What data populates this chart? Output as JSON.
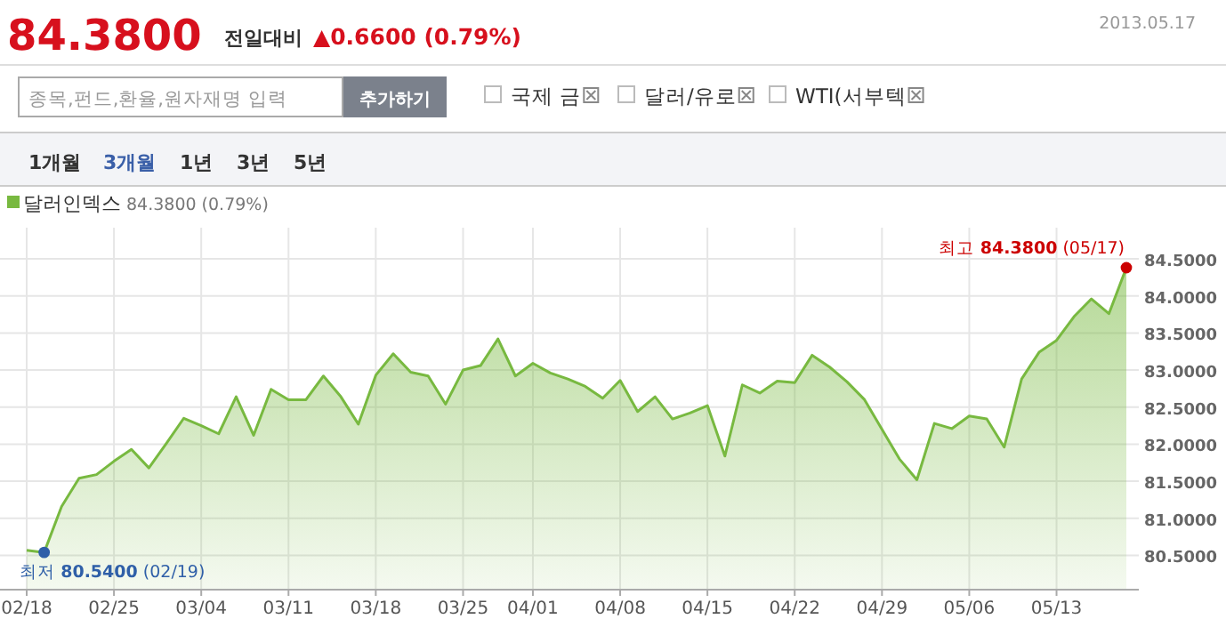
{
  "chart_data": {
    "type": "area",
    "title": "84.3800",
    "subtitle": "전일대비",
    "categories": [
      "02/18",
      null,
      null,
      null,
      null,
      "02/25",
      null,
      null,
      null,
      null,
      "03/04",
      null,
      null,
      null,
      null,
      "03/11",
      null,
      null,
      null,
      null,
      "03/18",
      null,
      null,
      null,
      null,
      "03/25",
      null,
      null,
      null,
      "04/01",
      null,
      null,
      null,
      null,
      "04/08",
      null,
      null,
      null,
      null,
      "04/15",
      null,
      null,
      null,
      null,
      "04/22",
      null,
      null,
      null,
      null,
      "04/29",
      null,
      null,
      null,
      null,
      "05/06",
      null,
      null,
      null,
      null,
      "05/13",
      null,
      null,
      null,
      null
    ],
    "series": [
      {
        "name": "달러인덱스",
        "color": "#78b940",
        "values": [
          80.57,
          80.54,
          81.16,
          81.54,
          81.59,
          81.77,
          81.93,
          81.68,
          82.01,
          82.35,
          82.25,
          82.14,
          82.64,
          82.12,
          82.74,
          82.6,
          82.6,
          82.92,
          82.64,
          82.27,
          82.93,
          83.22,
          82.97,
          82.92,
          82.54,
          83.0,
          83.06,
          83.42,
          82.92,
          83.09,
          82.96,
          82.88,
          82.78,
          82.62,
          82.86,
          82.44,
          82.64,
          82.34,
          82.42,
          82.52,
          81.84,
          82.8,
          82.69,
          82.85,
          82.83,
          83.2,
          83.04,
          82.84,
          82.6,
          82.2,
          81.8,
          81.52,
          82.28,
          82.21,
          82.38,
          82.34,
          81.96,
          82.88,
          83.24,
          83.4,
          83.72,
          83.96,
          83.76,
          84.38
        ]
      }
    ],
    "ylim": [
      80.05,
      84.92
    ],
    "yticks": [
      {
        "value": 80.5,
        "label": "80.5000"
      },
      {
        "value": 81,
        "label": "81.0000"
      },
      {
        "value": 81.5,
        "label": "81.5000"
      },
      {
        "value": 82,
        "label": "82.0000"
      },
      {
        "value": 82.5,
        "label": "82.5000"
      },
      {
        "value": 83,
        "label": "83.0000"
      },
      {
        "value": 83.5,
        "label": "83.5000"
      },
      {
        "value": 84,
        "label": "84.0000"
      },
      {
        "value": 84.5,
        "label": "84.5000"
      }
    ],
    "grid": true,
    "legend": "top left",
    "annotations": [
      "▲0.6600 (0.79%)",
      "2013.05.17",
      "종목,펀드,환율,원자재명 입력",
      "추가하기",
      "국제 금",
      "달러/유로",
      "WTI(서부텍",
      "1개월",
      "3개월",
      "1년",
      "3년",
      "5년",
      "84.3800 (0.79%)",
      "최저 80.5400 (02/19)",
      "최고 84.3800 (05/17)"
    ]
  }
}
